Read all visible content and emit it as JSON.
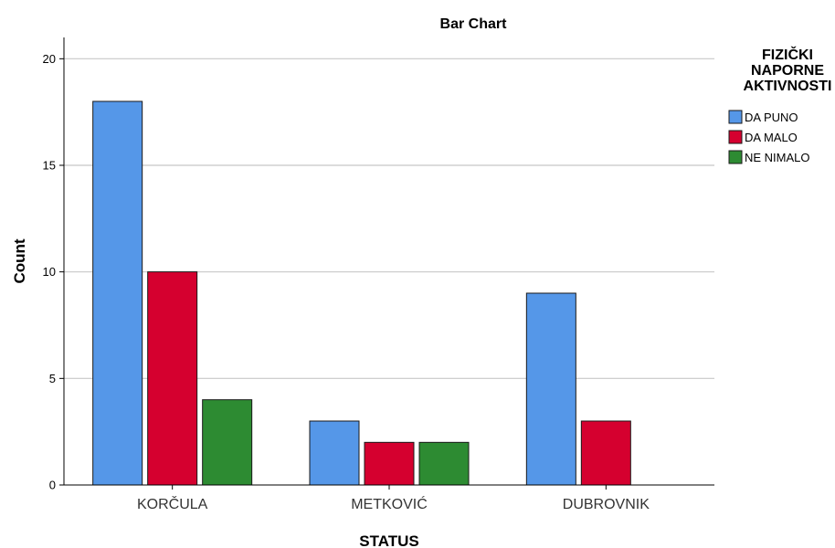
{
  "chart_data": {
    "type": "bar",
    "title": "Bar Chart",
    "xlabel": "STATUS",
    "ylabel": "Count",
    "categories": [
      "KORČULA",
      "METKOVIĆ",
      "DUBROVNIK"
    ],
    "series": [
      {
        "name": "DA PUNO",
        "color": "#5597e8",
        "values": [
          18,
          3,
          9
        ]
      },
      {
        "name": "DA MALO",
        "color": "#d5002f",
        "values": [
          10,
          2,
          3
        ]
      },
      {
        "name": "NE NIMALO",
        "color": "#2d8b32",
        "values": [
          4,
          2,
          0
        ]
      }
    ],
    "legend_title": [
      "FIZIČKI",
      "NAPORNE",
      "AKTIVNOSTI"
    ],
    "ylim": [
      0,
      21
    ],
    "yticks": [
      0,
      5,
      10,
      15,
      20
    ],
    "grid": true,
    "legend_position": "top-right"
  }
}
